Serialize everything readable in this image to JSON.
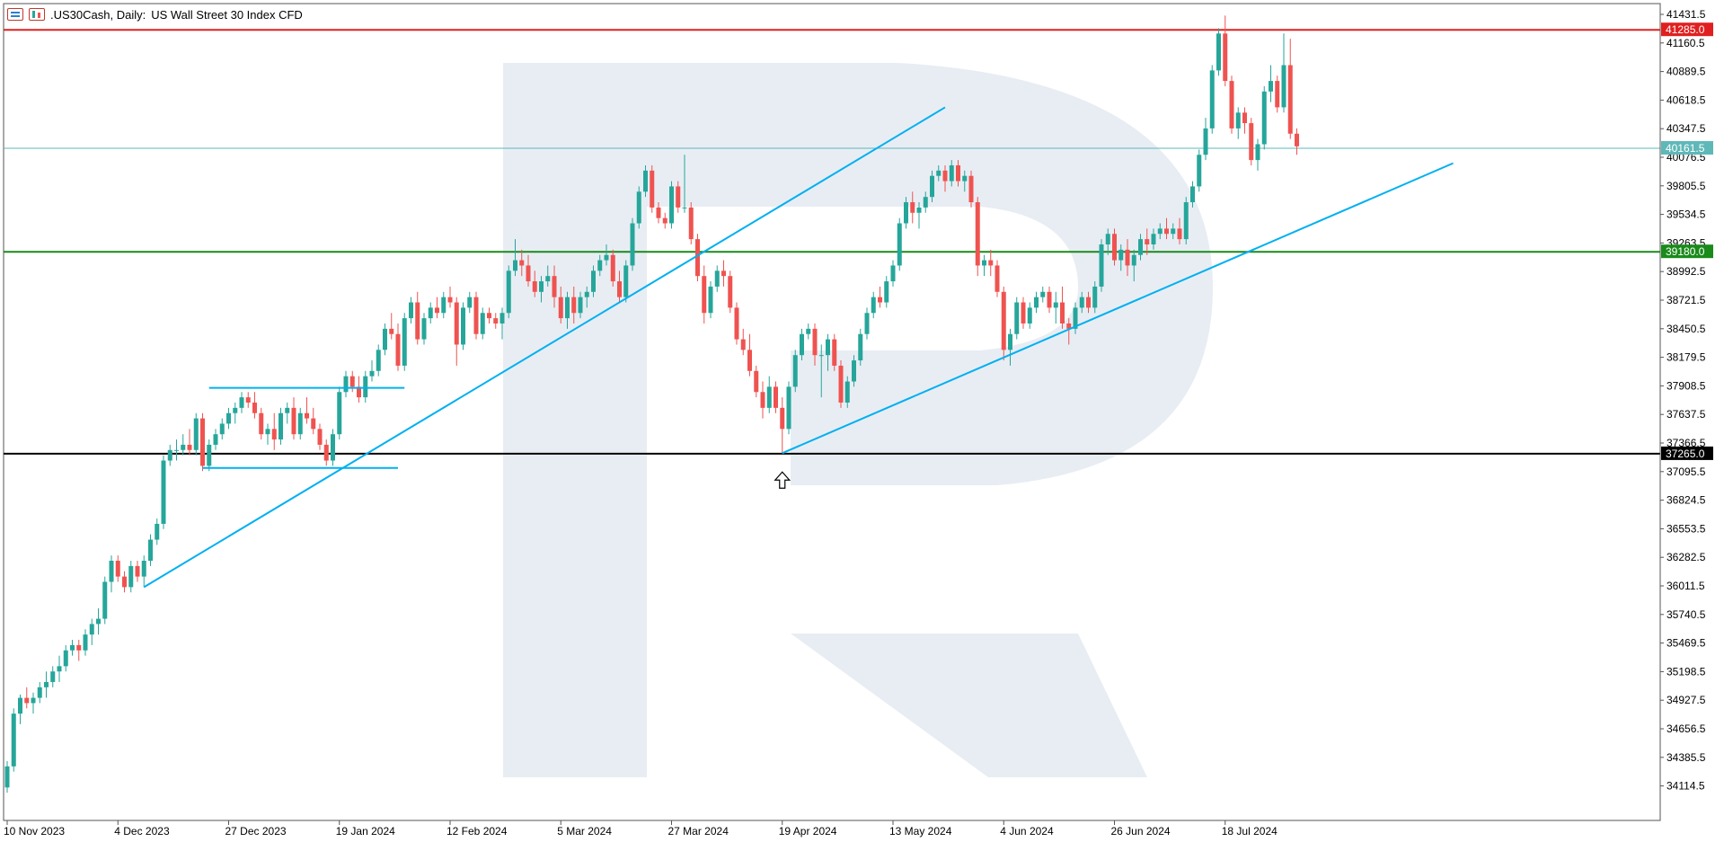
{
  "header": {
    "symbol": ".US30Cash, Daily:",
    "description": "US Wall Street 30 Index CFD"
  },
  "colors": {
    "bull": "#26a69a",
    "bear": "#ef5350",
    "trendline": "#00b0f0",
    "resistance": "#e02020",
    "support_green": "#1a8a1a",
    "support_black": "#000000",
    "current_price": "#5fb8b8",
    "watermark": "#e8edf4"
  },
  "chart_data": {
    "type": "candlestick",
    "title": ".US30Cash, Daily:  US Wall Street 30 Index CFD",
    "y_axis": {
      "position": "right",
      "range": [
        34000,
        41500
      ],
      "ticks": [
        41431.5,
        41160.5,
        40889.5,
        40618.5,
        40347.5,
        40076.5,
        39805.5,
        39534.5,
        39263.5,
        38992.5,
        38721.5,
        38450.5,
        38179.5,
        37908.5,
        37637.5,
        37366.5,
        37095.5,
        36824.5,
        36553.5,
        36282.5,
        36011.5,
        35740.5,
        35469.5,
        35198.5,
        34927.5,
        34656.5,
        34385.5,
        34114.5
      ]
    },
    "x_axis": {
      "labels": [
        {
          "label": "10 Nov 2023",
          "index": 0
        },
        {
          "label": "4 Dec 2023",
          "index": 17
        },
        {
          "label": "27 Dec 2023",
          "index": 34
        },
        {
          "label": "19 Jan 2024",
          "index": 51
        },
        {
          "label": "12 Feb 2024",
          "index": 68
        },
        {
          "label": "5 Mar 2024",
          "index": 85
        },
        {
          "label": "27 Mar 2024",
          "index": 102
        },
        {
          "label": "19 Apr 2024",
          "index": 119
        },
        {
          "label": "13 May 2024",
          "index": 136
        },
        {
          "label": "4 Jun 2024",
          "index": 153
        },
        {
          "label": "26 Jun 2024",
          "index": 170
        },
        {
          "label": "18 Jul 2024",
          "index": 187
        }
      ]
    },
    "price_lines": [
      {
        "name": "resistance",
        "value": 41285.0,
        "label": "41285.0",
        "color": "#e02020"
      },
      {
        "name": "current",
        "value": 40161.5,
        "label": "40161.5",
        "color": "#5fb8b8"
      },
      {
        "name": "support-green",
        "value": 39180.0,
        "label": "39180.0",
        "color": "#1a8a1a"
      },
      {
        "name": "support-black",
        "value": 37265.0,
        "label": "37265.0",
        "color": "#000000"
      }
    ],
    "trendlines": [
      {
        "name": "trendline-main",
        "from": {
          "index": 21,
          "price": 36000
        },
        "to": {
          "index": 144,
          "price": 40550
        }
      },
      {
        "name": "trendline-april",
        "from": {
          "index": 119,
          "price": 37270
        },
        "to": {
          "index": 222,
          "price": 40020
        }
      },
      {
        "name": "range-top",
        "from": {
          "index": 31,
          "price": 37890
        },
        "to": {
          "index": 61,
          "price": 37890
        }
      },
      {
        "name": "range-bottom",
        "from": {
          "index": 30,
          "price": 37130
        },
        "to": {
          "index": 60,
          "price": 37130
        }
      }
    ],
    "markers": [
      {
        "name": "arrow-marker",
        "index": 119,
        "price": 37160
      }
    ],
    "ohlc": [
      [
        34100,
        34350,
        34050,
        34300
      ],
      [
        34300,
        34850,
        34250,
        34800
      ],
      [
        34800,
        34980,
        34700,
        34950
      ],
      [
        34950,
        35050,
        34850,
        34900
      ],
      [
        34900,
        35000,
        34800,
        34950
      ],
      [
        34950,
        35100,
        34900,
        35050
      ],
      [
        35050,
        35200,
        34950,
        35100
      ],
      [
        35100,
        35250,
        35050,
        35200
      ],
      [
        35200,
        35350,
        35100,
        35250
      ],
      [
        35250,
        35450,
        35200,
        35400
      ],
      [
        35400,
        35500,
        35350,
        35450
      ],
      [
        35450,
        35500,
        35300,
        35400
      ],
      [
        35400,
        35600,
        35350,
        35550
      ],
      [
        35550,
        35700,
        35450,
        35650
      ],
      [
        35650,
        35800,
        35550,
        35700
      ],
      [
        35700,
        36100,
        35650,
        36050
      ],
      [
        36050,
        36300,
        35950,
        36250
      ],
      [
        36250,
        36300,
        36050,
        36100
      ],
      [
        36100,
        36150,
        35950,
        36000
      ],
      [
        36000,
        36250,
        35950,
        36200
      ],
      [
        36200,
        36250,
        36050,
        36100
      ],
      [
        36100,
        36300,
        36000,
        36250
      ],
      [
        36250,
        36500,
        36200,
        36450
      ],
      [
        36450,
        36650,
        36400,
        36600
      ],
      [
        36600,
        37250,
        36550,
        37200
      ],
      [
        37200,
        37350,
        37150,
        37300
      ],
      [
        37300,
        37400,
        37200,
        37300
      ],
      [
        37300,
        37450,
        37250,
        37350
      ],
      [
        37350,
        37500,
        37250,
        37300
      ],
      [
        37300,
        37650,
        37250,
        37600
      ],
      [
        37600,
        37650,
        37100,
        37150
      ],
      [
        37150,
        37400,
        37100,
        37350
      ],
      [
        37350,
        37500,
        37300,
        37450
      ],
      [
        37450,
        37600,
        37400,
        37550
      ],
      [
        37550,
        37700,
        37500,
        37650
      ],
      [
        37650,
        37750,
        37550,
        37700
      ],
      [
        37700,
        37850,
        37650,
        37800
      ],
      [
        37800,
        37850,
        37700,
        37750
      ],
      [
        37750,
        37850,
        37600,
        37650
      ],
      [
        37650,
        37700,
        37400,
        37450
      ],
      [
        37450,
        37550,
        37350,
        37500
      ],
      [
        37500,
        37650,
        37300,
        37400
      ],
      [
        37400,
        37700,
        37350,
        37650
      ],
      [
        37650,
        37750,
        37550,
        37700
      ],
      [
        37700,
        37800,
        37400,
        37450
      ],
      [
        37450,
        37700,
        37400,
        37650
      ],
      [
        37650,
        37800,
        37550,
        37600
      ],
      [
        37600,
        37700,
        37450,
        37500
      ],
      [
        37500,
        37550,
        37300,
        37350
      ],
      [
        37350,
        37400,
        37150,
        37200
      ],
      [
        37200,
        37500,
        37150,
        37450
      ],
      [
        37450,
        37900,
        37400,
        37850
      ],
      [
        37850,
        38050,
        37800,
        38000
      ],
      [
        38000,
        38050,
        37850,
        37900
      ],
      [
        37900,
        38000,
        37750,
        37800
      ],
      [
        37800,
        38050,
        37750,
        38000
      ],
      [
        38000,
        38150,
        37950,
        38050
      ],
      [
        38050,
        38300,
        38000,
        38250
      ],
      [
        38250,
        38500,
        38200,
        38450
      ],
      [
        38450,
        38600,
        38350,
        38400
      ],
      [
        38400,
        38500,
        38050,
        38100
      ],
      [
        38100,
        38600,
        38050,
        38550
      ],
      [
        38550,
        38750,
        38500,
        38700
      ],
      [
        38700,
        38800,
        38300,
        38350
      ],
      [
        38350,
        38600,
        38300,
        38550
      ],
      [
        38550,
        38700,
        38500,
        38650
      ],
      [
        38650,
        38750,
        38550,
        38600
      ],
      [
        38600,
        38800,
        38550,
        38750
      ],
      [
        38750,
        38850,
        38650,
        38700
      ],
      [
        38700,
        38750,
        38100,
        38300
      ],
      [
        38300,
        38700,
        38250,
        38650
      ],
      [
        38650,
        38800,
        38600,
        38750
      ],
      [
        38750,
        38800,
        38350,
        38400
      ],
      [
        38400,
        38650,
        38350,
        38600
      ],
      [
        38600,
        38650,
        38500,
        38550
      ],
      [
        38550,
        38600,
        38450,
        38500
      ],
      [
        38500,
        38650,
        38350,
        38600
      ],
      [
        38600,
        39050,
        38550,
        39000
      ],
      [
        39000,
        39300,
        38950,
        39100
      ],
      [
        39100,
        39200,
        38950,
        39050
      ],
      [
        39050,
        39150,
        38850,
        38900
      ],
      [
        38900,
        39000,
        38750,
        38800
      ],
      [
        38800,
        38950,
        38700,
        38900
      ],
      [
        38900,
        39050,
        38850,
        38950
      ],
      [
        38950,
        39050,
        38650,
        38750
      ],
      [
        38750,
        38850,
        38500,
        38550
      ],
      [
        38550,
        38800,
        38450,
        38750
      ],
      [
        38750,
        38850,
        38500,
        38600
      ],
      [
        38600,
        38800,
        38550,
        38750
      ],
      [
        38750,
        38850,
        38650,
        38800
      ],
      [
        38800,
        39050,
        38750,
        39000
      ],
      [
        39000,
        39150,
        38950,
        39100
      ],
      [
        39100,
        39250,
        39050,
        39150
      ],
      [
        39150,
        39200,
        38850,
        38900
      ],
      [
        38900,
        39000,
        38700,
        38750
      ],
      [
        38750,
        39100,
        38700,
        39050
      ],
      [
        39050,
        39500,
        39000,
        39450
      ],
      [
        39450,
        39800,
        39400,
        39750
      ],
      [
        39750,
        40000,
        39700,
        39950
      ],
      [
        39950,
        40000,
        39550,
        39600
      ],
      [
        39600,
        39650,
        39450,
        39500
      ],
      [
        39500,
        39550,
        39400,
        39450
      ],
      [
        39450,
        39850,
        39400,
        39800
      ],
      [
        39800,
        39850,
        39550,
        39600
      ],
      [
        39600,
        40100,
        39550,
        39600
      ],
      [
        39600,
        39650,
        39250,
        39300
      ],
      [
        39300,
        39350,
        38900,
        38950
      ],
      [
        38950,
        39050,
        38500,
        38600
      ],
      [
        38600,
        38900,
        38550,
        38850
      ],
      [
        38850,
        39050,
        38800,
        39000
      ],
      [
        39000,
        39100,
        38850,
        38950
      ],
      [
        38950,
        39000,
        38600,
        38650
      ],
      [
        38650,
        38700,
        38300,
        38350
      ],
      [
        38350,
        38450,
        38200,
        38250
      ],
      [
        38250,
        38400,
        38000,
        38050
      ],
      [
        38050,
        38100,
        37800,
        37850
      ],
      [
        37850,
        37950,
        37600,
        37700
      ],
      [
        37700,
        38000,
        37650,
        37900
      ],
      [
        37900,
        37950,
        37650,
        37700
      ],
      [
        37700,
        37800,
        37270,
        37500
      ],
      [
        37500,
        37950,
        37450,
        37900
      ],
      [
        37900,
        38250,
        37850,
        38200
      ],
      [
        38200,
        38450,
        38150,
        38400
      ],
      [
        38400,
        38500,
        38350,
        38450
      ],
      [
        38450,
        38500,
        38100,
        38200
      ],
      [
        38200,
        38300,
        37800,
        38200
      ],
      [
        38200,
        38400,
        38050,
        38350
      ],
      [
        38350,
        38400,
        38050,
        38100
      ],
      [
        38100,
        38150,
        37700,
        37750
      ],
      [
        37750,
        38000,
        37700,
        37950
      ],
      [
        37950,
        38200,
        37900,
        38150
      ],
      [
        38150,
        38450,
        38100,
        38400
      ],
      [
        38400,
        38650,
        38350,
        38600
      ],
      [
        38600,
        38800,
        38550,
        38750
      ],
      [
        38750,
        38850,
        38650,
        38700
      ],
      [
        38700,
        38950,
        38650,
        38900
      ],
      [
        38900,
        39100,
        38850,
        39050
      ],
      [
        39050,
        39500,
        39000,
        39450
      ],
      [
        39450,
        39700,
        39400,
        39650
      ],
      [
        39650,
        39750,
        39450,
        39550
      ],
      [
        39550,
        39650,
        39400,
        39600
      ],
      [
        39600,
        39750,
        39550,
        39700
      ],
      [
        39700,
        39950,
        39650,
        39900
      ],
      [
        39900,
        40000,
        39850,
        39950
      ],
      [
        39950,
        40000,
        39750,
        39850
      ],
      [
        39850,
        40050,
        39800,
        40000
      ],
      [
        40000,
        40050,
        39800,
        39850
      ],
      [
        39850,
        39950,
        39750,
        39900
      ],
      [
        39900,
        39950,
        39600,
        39650
      ],
      [
        39650,
        39700,
        38950,
        39050
      ],
      [
        39050,
        39150,
        38950,
        39100
      ],
      [
        39100,
        39200,
        38950,
        39050
      ],
      [
        39050,
        39100,
        38750,
        38800
      ],
      [
        38800,
        38850,
        38150,
        38250
      ],
      [
        38250,
        38450,
        38100,
        38400
      ],
      [
        38400,
        38750,
        38350,
        38700
      ],
      [
        38700,
        38750,
        38450,
        38500
      ],
      [
        38500,
        38700,
        38450,
        38650
      ],
      [
        38650,
        38800,
        38600,
        38750
      ],
      [
        38750,
        38850,
        38700,
        38800
      ],
      [
        38800,
        38850,
        38600,
        38650
      ],
      [
        38650,
        38800,
        38500,
        38700
      ],
      [
        38700,
        38850,
        38450,
        38500
      ],
      [
        38500,
        38550,
        38300,
        38450
      ],
      [
        38450,
        38700,
        38400,
        38650
      ],
      [
        38650,
        38800,
        38600,
        38750
      ],
      [
        38750,
        38800,
        38600,
        38650
      ],
      [
        38650,
        38900,
        38600,
        38850
      ],
      [
        38850,
        39300,
        38800,
        39250
      ],
      [
        39250,
        39400,
        39150,
        39350
      ],
      [
        39350,
        39400,
        39050,
        39100
      ],
      [
        39100,
        39250,
        39000,
        39200
      ],
      [
        39200,
        39300,
        38950,
        39050
      ],
      [
        39050,
        39200,
        38900,
        39150
      ],
      [
        39150,
        39350,
        39100,
        39300
      ],
      [
        39300,
        39400,
        39150,
        39250
      ],
      [
        39250,
        39400,
        39200,
        39350
      ],
      [
        39350,
        39450,
        39300,
        39400
      ],
      [
        39400,
        39500,
        39300,
        39350
      ],
      [
        39350,
        39450,
        39300,
        39400
      ],
      [
        39400,
        39500,
        39250,
        39300
      ],
      [
        39300,
        39700,
        39250,
        39650
      ],
      [
        39650,
        39850,
        39600,
        39800
      ],
      [
        39800,
        40150,
        39750,
        40100
      ],
      [
        40100,
        40450,
        40050,
        40350
      ],
      [
        40350,
        40950,
        40300,
        40900
      ],
      [
        40900,
        41300,
        40850,
        41250
      ],
      [
        41250,
        41420,
        40750,
        40800
      ],
      [
        40800,
        40850,
        40300,
        40350
      ],
      [
        40350,
        40550,
        40250,
        40500
      ],
      [
        40500,
        40550,
        40300,
        40400
      ],
      [
        40400,
        40450,
        40000,
        40050
      ],
      [
        40050,
        40250,
        39950,
        40200
      ],
      [
        40200,
        40750,
        40150,
        40700
      ],
      [
        40700,
        40950,
        40600,
        40800
      ],
      [
        40800,
        40850,
        40500,
        40550
      ],
      [
        40550,
        41250,
        40500,
        40950
      ],
      [
        40950,
        41200,
        40250,
        40300
      ],
      [
        40300,
        40350,
        40100,
        40180
      ]
    ]
  }
}
